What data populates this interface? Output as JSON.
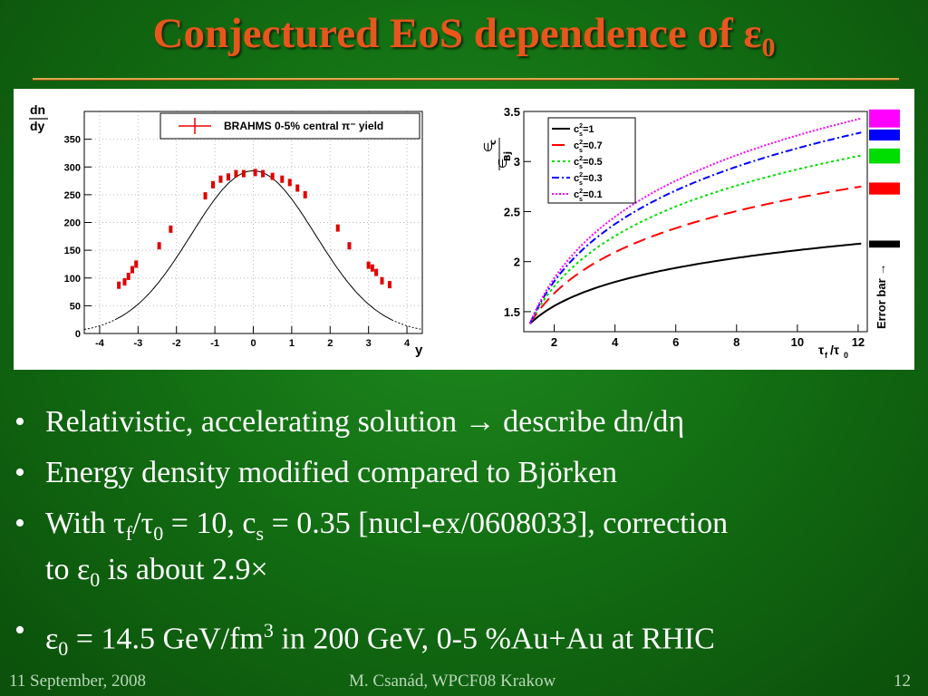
{
  "slide": {
    "title": "Conjectured EoS dependence of ε",
    "title_sub": "0",
    "bullets": [
      {
        "text": "Relativistic, accelerating solution → describe dn/dη"
      },
      {
        "text": "Energy density modified compared to Björken"
      },
      {
        "p1": "With τ",
        "s1": "f",
        "p2": "/τ",
        "s2": "0",
        "p3": " = 10, c",
        "s3": "s",
        "p4": " = 0.35 [nucl-ex/0608033], correction",
        "p5": "to ε",
        "s5": "0",
        "p6": " is about 2.9×"
      },
      {
        "p1": "ε",
        "s1": "0",
        "p2": " = 14.5 GeV/fm",
        "sup": "3",
        "p3": " in 200 GeV, 0-5 %Au+Au at RHIC"
      }
    ],
    "footer": {
      "date": "11 September, 2008",
      "author": "M. Csanád, WPCF08 Krakow",
      "page": "12"
    }
  },
  "chart_data": [
    {
      "type": "scatter",
      "legend": "BRAHMS 0-5% central π⁻ yield",
      "ylabel_top": "dn",
      "ylabel_bottom": "dy",
      "xlabel": "y",
      "xlim": [
        -4.4,
        4.4
      ],
      "ylim": [
        0,
        400
      ],
      "xticks": [
        "-4",
        "-3",
        "-2",
        "-1",
        "0",
        "1",
        "2",
        "3",
        "4"
      ],
      "yticks": [
        "0",
        "50",
        "100",
        "150",
        "200",
        "250",
        "300",
        "350"
      ],
      "points": [
        [
          -3.5,
          87
        ],
        [
          -3.35,
          93
        ],
        [
          -3.25,
          103
        ],
        [
          -3.15,
          115
        ],
        [
          -3.05,
          125
        ],
        [
          -2.45,
          158
        ],
        [
          -2.15,
          188
        ],
        [
          -1.25,
          248
        ],
        [
          -1.05,
          268
        ],
        [
          -0.85,
          278
        ],
        [
          -0.65,
          282
        ],
        [
          -0.45,
          288
        ],
        [
          -0.25,
          288
        ],
        [
          0.05,
          290
        ],
        [
          0.25,
          288
        ],
        [
          0.5,
          283
        ],
        [
          0.75,
          278
        ],
        [
          0.95,
          272
        ],
        [
          1.15,
          262
        ],
        [
          1.35,
          250
        ],
        [
          2.2,
          190
        ],
        [
          2.5,
          158
        ],
        [
          3.0,
          123
        ],
        [
          3.1,
          118
        ],
        [
          3.2,
          110
        ],
        [
          3.35,
          95
        ],
        [
          3.55,
          88
        ]
      ],
      "fit": {
        "peak": 293,
        "sigma": 1.62,
        "solid_from": -3.6,
        "solid_to": 3.6
      }
    },
    {
      "type": "line",
      "xlabel": "τf/τ0",
      "ylabel": "∈c / ∈Bj",
      "xlim": [
        1,
        12.3
      ],
      "ylim": [
        1.3,
        3.5
      ],
      "xticks": [
        "2",
        "4",
        "6",
        "8",
        "10",
        "12"
      ],
      "yticks": [
        "1.5",
        "2",
        "2.5",
        "3",
        "3.5"
      ],
      "series": [
        {
          "name": "cs²=1",
          "label": "c",
          "sup": "2",
          "sub": "s",
          "val": "=1",
          "color": "#000000",
          "dash": "",
          "y_end": 2.18
        },
        {
          "name": "cs²=0.7",
          "label": "c",
          "sup": "2",
          "sub": "s",
          "val": "=0.7",
          "color": "#ff0000",
          "dash": "14 7",
          "y_end": 2.75
        },
        {
          "name": "cs²=0.5",
          "label": "c",
          "sup": "2",
          "sub": "s",
          "val": "=0.5",
          "color": "#00dd00",
          "dash": "3 3",
          "y_end": 3.06
        },
        {
          "name": "cs²=0.3",
          "label": "c",
          "sup": "2",
          "sub": "s",
          "val": "=0.3",
          "color": "#0000ff",
          "dash": "8 3 2 3",
          "y_end": 3.29
        },
        {
          "name": "cs²=0.1",
          "label": "c",
          "sup": "2",
          "sub": "s",
          "val": "=0.1",
          "color": "#ff00ff",
          "dash": "2 2",
          "y_end": 3.43
        }
      ],
      "start": {
        "x": 1.2,
        "y": 1.38
      },
      "error_bar": {
        "label": "Error bar →",
        "bands": [
          {
            "color": "#ff00ff",
            "low": 3.34,
            "high": 3.52
          },
          {
            "color": "#0000ff",
            "low": 3.21,
            "high": 3.32
          },
          {
            "color": "#00dd00",
            "low": 2.98,
            "high": 3.13
          },
          {
            "color": "#ff0000",
            "low": 2.67,
            "high": 2.79
          },
          {
            "color": "#000000",
            "low": 2.14,
            "high": 2.21
          }
        ]
      }
    }
  ]
}
